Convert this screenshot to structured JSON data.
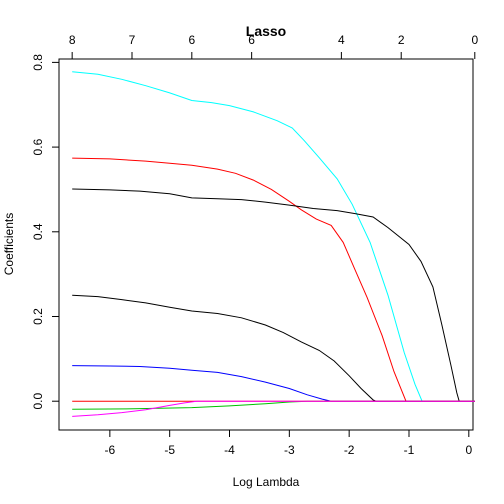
{
  "chart_data": {
    "type": "line",
    "title": "Lasso",
    "xlabel": "Log Lambda",
    "ylabel": "Coefficients",
    "xlim": [
      -6.85,
      0.07
    ],
    "ylim": [
      -0.068,
      0.808
    ],
    "x_ticks": [
      -6,
      -5,
      -4,
      -3,
      -2,
      -1,
      0
    ],
    "y_ticks": [
      0.0,
      0.2,
      0.4,
      0.6,
      0.8
    ],
    "y_tick_labels": [
      "0.0",
      "0.2",
      "0.4",
      "0.6",
      "0.8"
    ],
    "top_axis": {
      "ticks_at": [
        -6.63,
        -5.63,
        -4.63,
        -3.63,
        -2.13,
        -1.13,
        0.1
      ],
      "labels": [
        "8",
        "7",
        "6",
        "6",
        "4",
        "2",
        "0"
      ]
    },
    "series": [
      {
        "color": "#00FFFF",
        "points": [
          [
            -6.63,
            0.778
          ],
          [
            -6.2,
            0.772
          ],
          [
            -5.8,
            0.76
          ],
          [
            -5.4,
            0.745
          ],
          [
            -5.0,
            0.728
          ],
          [
            -4.63,
            0.71
          ],
          [
            -4.3,
            0.705
          ],
          [
            -4.0,
            0.698
          ],
          [
            -3.6,
            0.683
          ],
          [
            -3.2,
            0.662
          ],
          [
            -2.95,
            0.645
          ],
          [
            -2.75,
            0.615
          ],
          [
            -2.5,
            0.575
          ],
          [
            -2.2,
            0.525
          ],
          [
            -1.95,
            0.465
          ],
          [
            -1.65,
            0.375
          ],
          [
            -1.35,
            0.25
          ],
          [
            -1.08,
            0.115
          ],
          [
            -0.9,
            0.04
          ],
          [
            -0.78,
            0.0
          ],
          [
            0.1,
            0.0
          ]
        ]
      },
      {
        "color": "#FF0000",
        "points": [
          [
            -6.63,
            0.574
          ],
          [
            -6.0,
            0.572
          ],
          [
            -5.4,
            0.567
          ],
          [
            -5.0,
            0.562
          ],
          [
            -4.63,
            0.557
          ],
          [
            -4.2,
            0.548
          ],
          [
            -3.9,
            0.538
          ],
          [
            -3.6,
            0.522
          ],
          [
            -3.3,
            0.5
          ],
          [
            -3.0,
            0.472
          ],
          [
            -2.8,
            0.452
          ],
          [
            -2.55,
            0.43
          ],
          [
            -2.3,
            0.415
          ],
          [
            -2.1,
            0.375
          ],
          [
            -1.9,
            0.31
          ],
          [
            -1.7,
            0.245
          ],
          [
            -1.45,
            0.155
          ],
          [
            -1.25,
            0.07
          ],
          [
            -1.05,
            0.0
          ],
          [
            0.1,
            0.0
          ]
        ]
      },
      {
        "color": "#000000",
        "points": [
          [
            -6.63,
            0.501
          ],
          [
            -6.0,
            0.499
          ],
          [
            -5.5,
            0.496
          ],
          [
            -5.0,
            0.49
          ],
          [
            -4.63,
            0.48
          ],
          [
            -4.2,
            0.478
          ],
          [
            -3.8,
            0.476
          ],
          [
            -3.4,
            0.47
          ],
          [
            -3.0,
            0.463
          ],
          [
            -2.6,
            0.455
          ],
          [
            -2.2,
            0.45
          ],
          [
            -1.9,
            0.443
          ],
          [
            -1.6,
            0.435
          ],
          [
            -1.35,
            0.41
          ],
          [
            -1.0,
            0.37
          ],
          [
            -0.8,
            0.33
          ],
          [
            -0.6,
            0.27
          ],
          [
            -0.45,
            0.18
          ],
          [
            -0.3,
            0.085
          ],
          [
            -0.2,
            0.02
          ],
          [
            -0.16,
            0.0
          ],
          [
            0.1,
            0.0
          ]
        ]
      },
      {
        "color": "#000000",
        "points": [
          [
            -6.63,
            0.25
          ],
          [
            -6.2,
            0.247
          ],
          [
            -5.8,
            0.24
          ],
          [
            -5.4,
            0.232
          ],
          [
            -5.0,
            0.222
          ],
          [
            -4.63,
            0.213
          ],
          [
            -4.2,
            0.207
          ],
          [
            -3.8,
            0.197
          ],
          [
            -3.4,
            0.18
          ],
          [
            -3.1,
            0.162
          ],
          [
            -2.8,
            0.14
          ],
          [
            -2.5,
            0.12
          ],
          [
            -2.25,
            0.095
          ],
          [
            -2.0,
            0.06
          ],
          [
            -1.8,
            0.03
          ],
          [
            -1.6,
            0.003
          ],
          [
            -1.55,
            0.0
          ],
          [
            0.1,
            0.0
          ]
        ]
      },
      {
        "color": "#0000FF",
        "points": [
          [
            -6.63,
            0.084
          ],
          [
            -6.0,
            0.083
          ],
          [
            -5.5,
            0.082
          ],
          [
            -5.0,
            0.078
          ],
          [
            -4.63,
            0.073
          ],
          [
            -4.2,
            0.068
          ],
          [
            -3.8,
            0.058
          ],
          [
            -3.4,
            0.045
          ],
          [
            -3.0,
            0.03
          ],
          [
            -2.7,
            0.015
          ],
          [
            -2.45,
            0.005
          ],
          [
            -2.3,
            0.0
          ],
          [
            0.1,
            0.0
          ]
        ]
      },
      {
        "color": "#00C000",
        "points": [
          [
            -6.63,
            -0.019
          ],
          [
            -5.6,
            -0.018
          ],
          [
            -4.63,
            -0.015
          ],
          [
            -4.0,
            -0.011
          ],
          [
            -3.4,
            -0.006
          ],
          [
            -3.0,
            -0.002
          ],
          [
            -2.7,
            0.0
          ],
          [
            0.1,
            0.0
          ]
        ]
      },
      {
        "color": "#FF0000",
        "points": [
          [
            -6.63,
            0.0
          ],
          [
            0.1,
            0.0
          ]
        ]
      },
      {
        "color": "#FF00FF",
        "points": [
          [
            -6.63,
            -0.036
          ],
          [
            -6.2,
            -0.032
          ],
          [
            -5.8,
            -0.027
          ],
          [
            -5.4,
            -0.02
          ],
          [
            -5.0,
            -0.01
          ],
          [
            -4.75,
            -0.004
          ],
          [
            -4.55,
            0.0
          ],
          [
            0.1,
            0.0
          ]
        ]
      }
    ]
  }
}
